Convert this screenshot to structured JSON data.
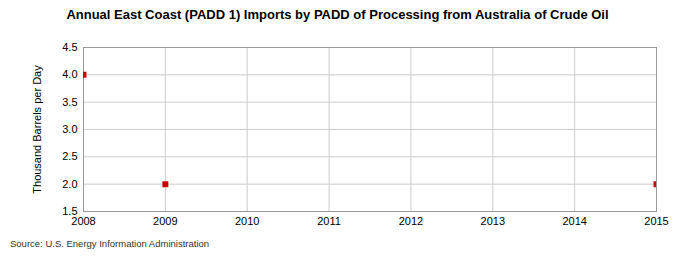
{
  "chart_data": {
    "type": "scatter",
    "title": "Annual East Coast (PADD 1) Imports by PADD of Processing from Australia of Crude Oil",
    "y_label": "Thousand Barrels per Day",
    "caption": "Source: U.S. Energy Information Administration",
    "x": [
      2008,
      2009,
      2015
    ],
    "values": [
      4,
      2,
      2
    ],
    "color": "#cc0000",
    "marker": "square",
    "xlim": [
      2008,
      2015
    ],
    "xticks": [
      2008,
      2009,
      2010,
      2011,
      2012,
      2013,
      2014,
      2015
    ],
    "ylim": [
      1.5,
      4.5
    ],
    "yticks": [
      1.5,
      {
        "value": 2,
        "label": "2.0"
      },
      2.5,
      {
        "value": 3,
        "label": "3.0"
      },
      3.5,
      {
        "value": 4,
        "label": "4.0"
      },
      4.5
    ],
    "grid": true
  }
}
